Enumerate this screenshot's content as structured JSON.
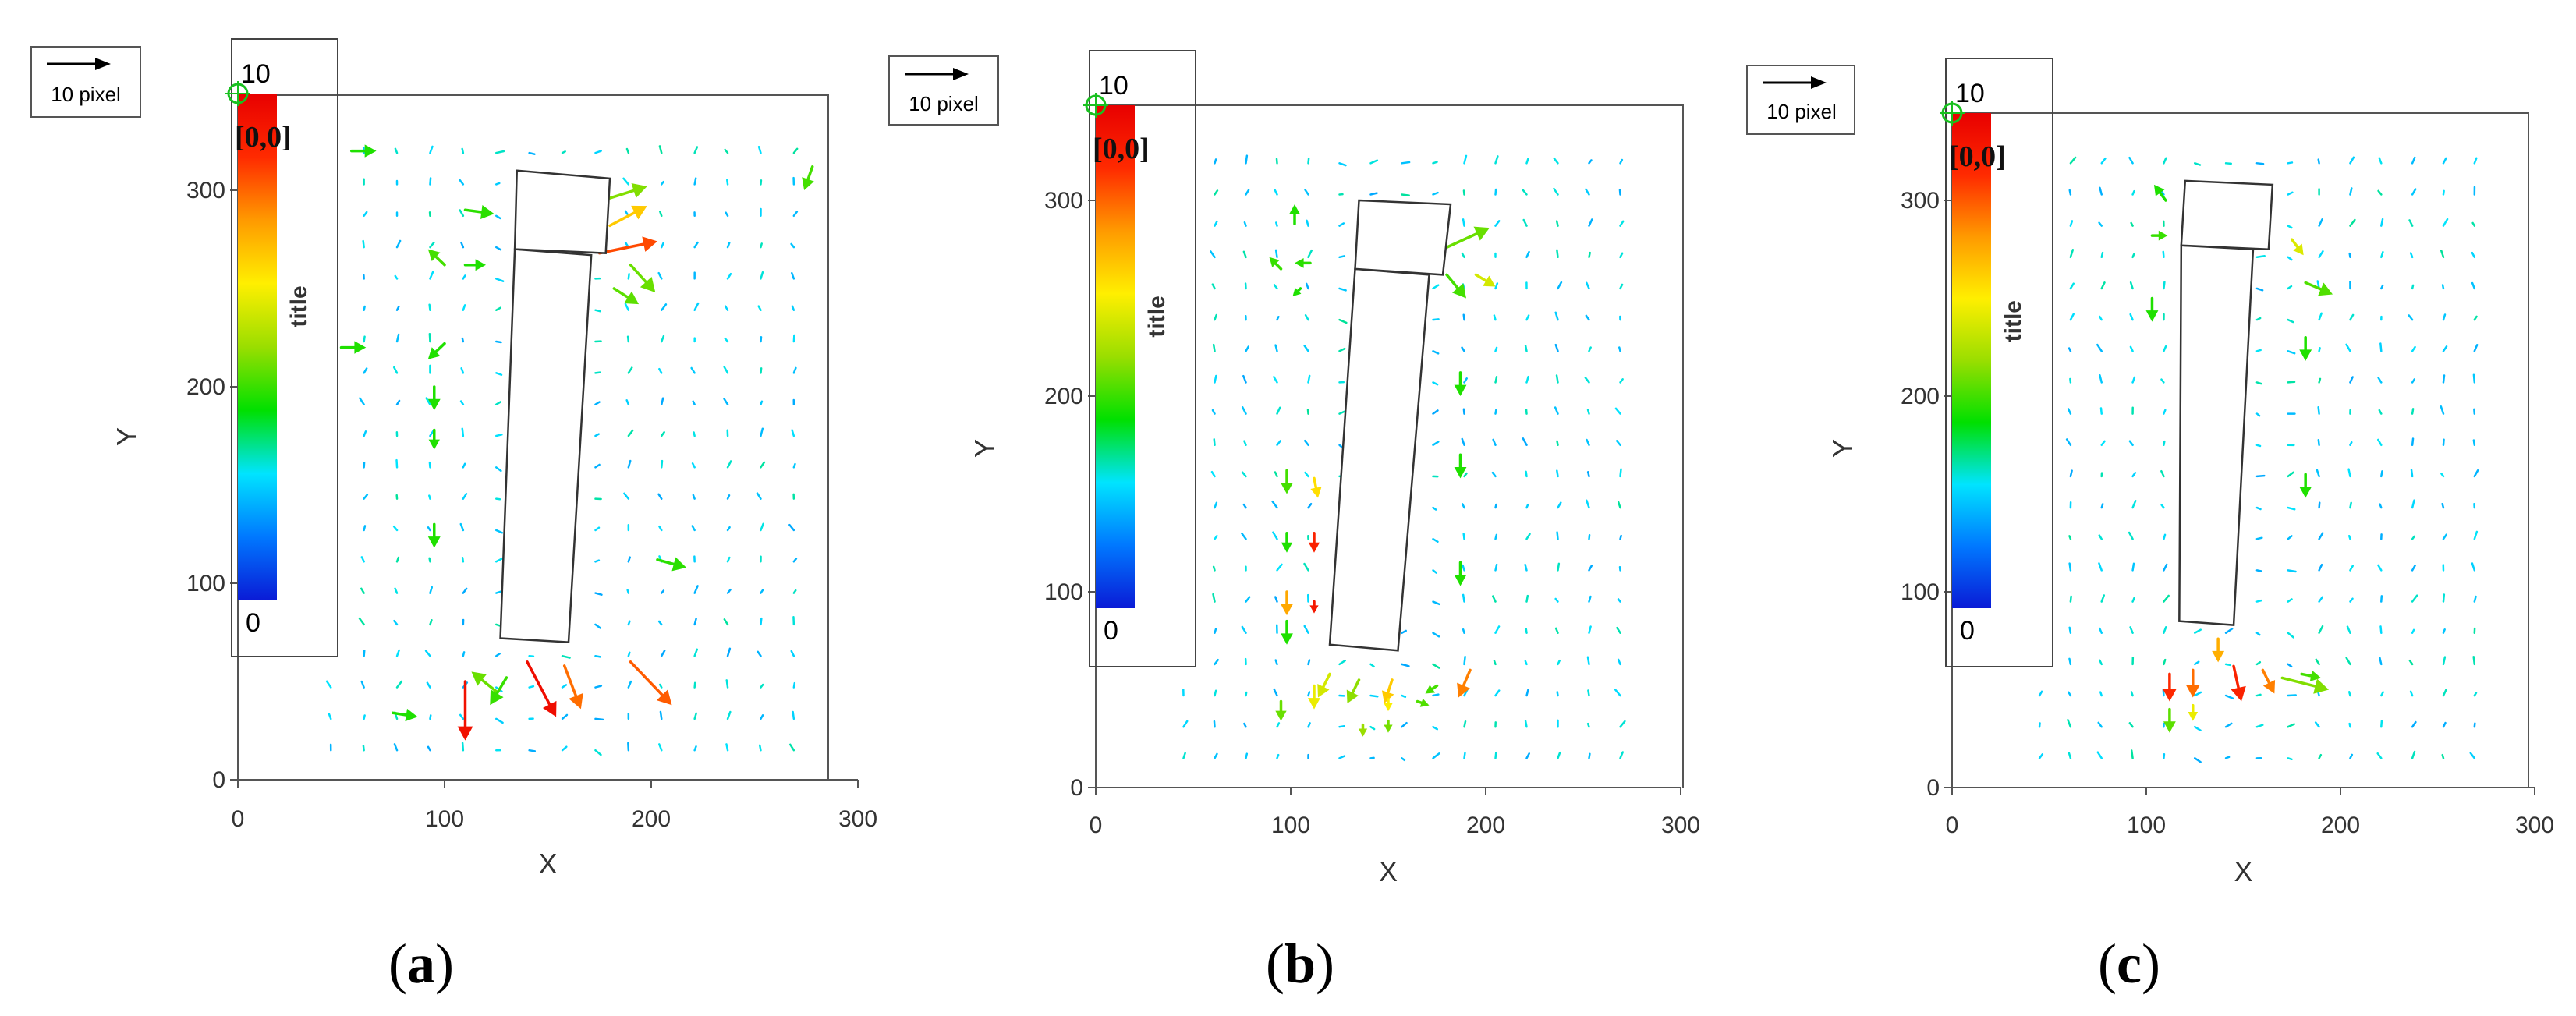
{
  "chart_data": [
    {
      "type": "vector-field",
      "panel_label": "a",
      "scale_label": "10 pixel",
      "colorbar": {
        "max_label": "10",
        "min_label": "0",
        "title": "title",
        "colors": [
          "#0a1bd6",
          "#0078ff",
          "#00e4ff",
          "#00e000",
          "#9ade00",
          "#ffef00",
          "#ff9a00",
          "#ff2a00",
          "#e80000"
        ]
      },
      "origin_label": "[0,0]",
      "xlabel": "X",
      "ylabel": "Y",
      "xlim": [
        0,
        300
      ],
      "ylim": [
        0,
        350
      ],
      "xticks": [
        "0",
        "100",
        "200",
        "300"
      ],
      "yticks": [
        "0",
        "100",
        "200",
        "300"
      ],
      "obstacle": {
        "head": [
          [
            135,
            310
          ],
          [
            180,
            306
          ],
          [
            178,
            268
          ],
          [
            134,
            270
          ]
        ],
        "body": [
          [
            134,
            270
          ],
          [
            171,
            267
          ],
          [
            160,
            70
          ],
          [
            127,
            72
          ]
        ]
      },
      "highlights": [
        {
          "x": 110,
          "y": 50,
          "dx": 0,
          "dy": -30,
          "mag": 9.5
        },
        {
          "x": 140,
          "y": 60,
          "dx": 14,
          "dy": -28,
          "mag": 9.6
        },
        {
          "x": 158,
          "y": 58,
          "dx": 8,
          "dy": -22,
          "mag": 8.0
        },
        {
          "x": 190,
          "y": 60,
          "dx": 20,
          "dy": -22,
          "mag": 8.2
        },
        {
          "x": 125,
          "y": 45,
          "dx": -12,
          "dy": 10,
          "mag": 4.6
        },
        {
          "x": 130,
          "y": 52,
          "dx": -8,
          "dy": -14,
          "mag": 4.2
        },
        {
          "x": 75,
          "y": 34,
          "dx": 12,
          "dy": -2,
          "mag": 4.0
        },
        {
          "x": 175,
          "y": 268,
          "dx": 28,
          "dy": 6,
          "mag": 8.4
        },
        {
          "x": 180,
          "y": 282,
          "dx": 18,
          "dy": 10,
          "mag": 6.8
        },
        {
          "x": 180,
          "y": 296,
          "dx": 18,
          "dy": 6,
          "mag": 4.8
        },
        {
          "x": 182,
          "y": 250,
          "dx": 12,
          "dy": -8,
          "mag": 4.5
        },
        {
          "x": 190,
          "y": 262,
          "dx": 12,
          "dy": -14,
          "mag": 4.6
        },
        {
          "x": 100,
          "y": 262,
          "dx": -8,
          "dy": 8,
          "mag": 4.3
        },
        {
          "x": 110,
          "y": 262,
          "dx": 10,
          "dy": 0,
          "mag": 4.0
        },
        {
          "x": 100,
          "y": 222,
          "dx": -8,
          "dy": -8,
          "mag": 4.0
        },
        {
          "x": 95,
          "y": 200,
          "dx": 0,
          "dy": -12,
          "mag": 4.0
        },
        {
          "x": 95,
          "y": 178,
          "dx": 0,
          "dy": -10,
          "mag": 4.0
        },
        {
          "x": 95,
          "y": 130,
          "dx": 0,
          "dy": -12,
          "mag": 4.0
        },
        {
          "x": 278,
          "y": 312,
          "dx": -4,
          "dy": -12,
          "mag": 4.3
        },
        {
          "x": 110,
          "y": 290,
          "dx": 14,
          "dy": -2,
          "mag": 4.1
        },
        {
          "x": 203,
          "y": 112,
          "dx": 14,
          "dy": -4,
          "mag": 4.1
        },
        {
          "x": 50,
          "y": 220,
          "dx": 12,
          "dy": 0,
          "mag": 4.0
        },
        {
          "x": 55,
          "y": 320,
          "dx": 12,
          "dy": 0,
          "mag": 4.0
        }
      ]
    },
    {
      "type": "vector-field",
      "panel_label": "b",
      "scale_label": "10 pixel",
      "colorbar": {
        "max_label": "10",
        "min_label": "0",
        "title": "title",
        "colors": [
          "#0a1bd6",
          "#0078ff",
          "#00e4ff",
          "#00e000",
          "#9ade00",
          "#ffef00",
          "#ff9a00",
          "#ff2a00",
          "#e80000"
        ]
      },
      "origin_label": "[0,0]",
      "xlabel": "X",
      "ylabel": "Y",
      "xlim": [
        0,
        300
      ],
      "ylim": [
        0,
        350
      ],
      "xticks": [
        "0",
        "100",
        "200",
        "300"
      ],
      "yticks": [
        "0",
        "100",
        "200",
        "300"
      ],
      "obstacle": {
        "head": [
          [
            135,
            300
          ],
          [
            182,
            298
          ],
          [
            178,
            262
          ],
          [
            133,
            265
          ]
        ],
        "body": [
          [
            133,
            265
          ],
          [
            171,
            262
          ],
          [
            155,
            70
          ],
          [
            120,
            73
          ]
        ]
      },
      "highlights": [
        {
          "x": 112,
          "y": 158,
          "dx": 2,
          "dy": -10,
          "mag": 6.5
        },
        {
          "x": 112,
          "y": 130,
          "dx": 0,
          "dy": -10,
          "mag": 9.0
        },
        {
          "x": 98,
          "y": 100,
          "dx": 0,
          "dy": -12,
          "mag": 7.3
        },
        {
          "x": 112,
          "y": 95,
          "dx": 0,
          "dy": -6,
          "mag": 9.3
        },
        {
          "x": 98,
          "y": 162,
          "dx": 0,
          "dy": -12,
          "mag": 4.3
        },
        {
          "x": 98,
          "y": 130,
          "dx": 0,
          "dy": -10,
          "mag": 4.0
        },
        {
          "x": 98,
          "y": 85,
          "dx": 0,
          "dy": -12,
          "mag": 4.0
        },
        {
          "x": 95,
          "y": 265,
          "dx": -6,
          "dy": 6,
          "mag": 4.2
        },
        {
          "x": 102,
          "y": 288,
          "dx": 0,
          "dy": 10,
          "mag": 4.0
        },
        {
          "x": 110,
          "y": 268,
          "dx": -8,
          "dy": 0,
          "mag": 4.1
        },
        {
          "x": 105,
          "y": 255,
          "dx": -4,
          "dy": -4,
          "mag": 4.0
        },
        {
          "x": 180,
          "y": 276,
          "dx": 22,
          "dy": 10,
          "mag": 4.6
        },
        {
          "x": 180,
          "y": 262,
          "dx": 10,
          "dy": -12,
          "mag": 4.3
        },
        {
          "x": 195,
          "y": 262,
          "dx": 10,
          "dy": -6,
          "mag": 5.7
        },
        {
          "x": 187,
          "y": 212,
          "dx": 0,
          "dy": -12,
          "mag": 4.0
        },
        {
          "x": 187,
          "y": 170,
          "dx": 0,
          "dy": -12,
          "mag": 4.0
        },
        {
          "x": 187,
          "y": 115,
          "dx": 0,
          "dy": -12,
          "mag": 4.0
        },
        {
          "x": 95,
          "y": 44,
          "dx": 0,
          "dy": -10,
          "mag": 4.6
        },
        {
          "x": 112,
          "y": 52,
          "dx": 0,
          "dy": -12,
          "mag": 6.0
        },
        {
          "x": 120,
          "y": 58,
          "dx": -6,
          "dy": -12,
          "mag": 5.7
        },
        {
          "x": 135,
          "y": 55,
          "dx": -6,
          "dy": -12,
          "mag": 4.9
        },
        {
          "x": 152,
          "y": 55,
          "dx": -4,
          "dy": -12,
          "mag": 6.8
        },
        {
          "x": 165,
          "y": 44,
          "dx": 6,
          "dy": -2,
          "mag": 4.4
        },
        {
          "x": 175,
          "y": 52,
          "dx": -6,
          "dy": -4,
          "mag": 4.3
        },
        {
          "x": 192,
          "y": 60,
          "dx": -6,
          "dy": -14,
          "mag": 7.8
        },
        {
          "x": 137,
          "y": 32,
          "dx": 0,
          "dy": -6,
          "mag": 5.0
        },
        {
          "x": 150,
          "y": 34,
          "dx": 0,
          "dy": -6,
          "mag": 4.7
        },
        {
          "x": 150,
          "y": 45,
          "dx": 0,
          "dy": -6,
          "mag": 6.2
        }
      ]
    },
    {
      "type": "vector-field",
      "panel_label": "c",
      "scale_label": "10 pixel",
      "colorbar": {
        "max_label": "10",
        "min_label": "0",
        "title": "title",
        "colors": [
          "#0a1bd6",
          "#0078ff",
          "#00e4ff",
          "#00e000",
          "#9ade00",
          "#ffef00",
          "#ff9a00",
          "#ff2a00",
          "#e80000"
        ]
      },
      "origin_label": "[0,0]",
      "xlabel": "X",
      "ylabel": "Y",
      "xlim": [
        0,
        300
      ],
      "ylim": [
        0,
        350
      ],
      "xticks": [
        "0",
        "100",
        "200",
        "300"
      ],
      "yticks": [
        "0",
        "100",
        "200",
        "300"
      ],
      "obstacle": {
        "head": [
          [
            120,
            310
          ],
          [
            165,
            308
          ],
          [
            163,
            275
          ],
          [
            118,
            277
          ]
        ],
        "body": [
          [
            118,
            277
          ],
          [
            155,
            275
          ],
          [
            145,
            83
          ],
          [
            117,
            85
          ]
        ]
      },
      "highlights": [
        {
          "x": 112,
          "y": 58,
          "dx": 0,
          "dy": -14,
          "mag": 8.8
        },
        {
          "x": 124,
          "y": 60,
          "dx": 0,
          "dy": -14,
          "mag": 8.0
        },
        {
          "x": 137,
          "y": 76,
          "dx": 0,
          "dy": -12,
          "mag": 7.2
        },
        {
          "x": 145,
          "y": 62,
          "dx": 4,
          "dy": -18,
          "mag": 9.0
        },
        {
          "x": 160,
          "y": 60,
          "dx": 6,
          "dy": -12,
          "mag": 7.8
        },
        {
          "x": 170,
          "y": 56,
          "dx": 24,
          "dy": -6,
          "mag": 4.8
        },
        {
          "x": 180,
          "y": 58,
          "dx": 10,
          "dy": -2,
          "mag": 4.3
        },
        {
          "x": 112,
          "y": 40,
          "dx": 0,
          "dy": -12,
          "mag": 4.5
        },
        {
          "x": 124,
          "y": 42,
          "dx": 0,
          "dy": -8,
          "mag": 6.0
        },
        {
          "x": 175,
          "y": 280,
          "dx": 6,
          "dy": -8,
          "mag": 5.8
        },
        {
          "x": 182,
          "y": 258,
          "dx": 14,
          "dy": -6,
          "mag": 4.4
        },
        {
          "x": 103,
          "y": 282,
          "dx": 8,
          "dy": 0,
          "mag": 4.2
        },
        {
          "x": 103,
          "y": 250,
          "dx": 0,
          "dy": -12,
          "mag": 4.0
        },
        {
          "x": 110,
          "y": 300,
          "dx": -6,
          "dy": 8,
          "mag": 4.0
        },
        {
          "x": 182,
          "y": 230,
          "dx": 0,
          "dy": -12,
          "mag": 4.0
        },
        {
          "x": 182,
          "y": 160,
          "dx": 0,
          "dy": -12,
          "mag": 4.0
        }
      ]
    }
  ]
}
